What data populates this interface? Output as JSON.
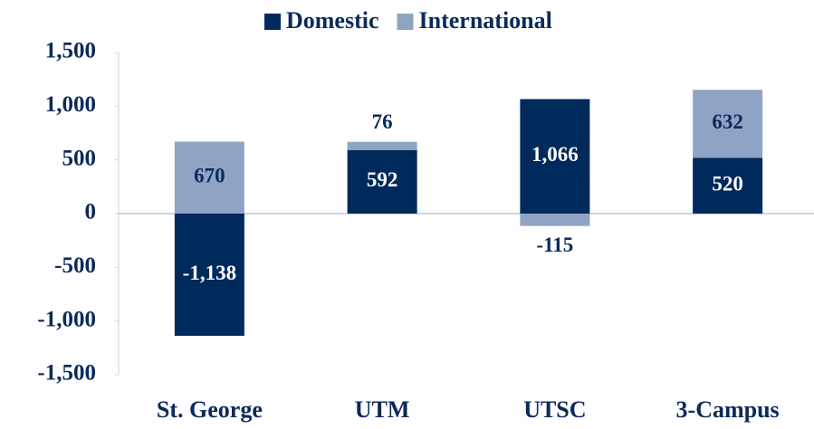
{
  "chart_data": {
    "type": "bar",
    "stacked": true,
    "categories": [
      "St. George",
      "UTM",
      "UTSC",
      "3-Campus"
    ],
    "series": [
      {
        "name": "Domestic",
        "color": "#002a5c",
        "values": [
          -1138,
          592,
          1066,
          520
        ],
        "value_labels": [
          "-1,138",
          "592",
          "1,066",
          "520"
        ]
      },
      {
        "name": "International",
        "color": "#8fa4c4",
        "values": [
          670,
          76,
          -115,
          632
        ],
        "value_labels": [
          "670",
          "76",
          "-115",
          "632"
        ]
      }
    ],
    "ylim": [
      -1500,
      1500
    ],
    "yticks": [
      {
        "value": -1500,
        "label": "-1,500"
      },
      {
        "value": -1000,
        "label": "-1,000"
      },
      -500,
      0,
      500,
      {
        "value": 1000,
        "label": "1,000"
      },
      {
        "value": 1500,
        "label": "1,500"
      }
    ],
    "legend": "top"
  }
}
